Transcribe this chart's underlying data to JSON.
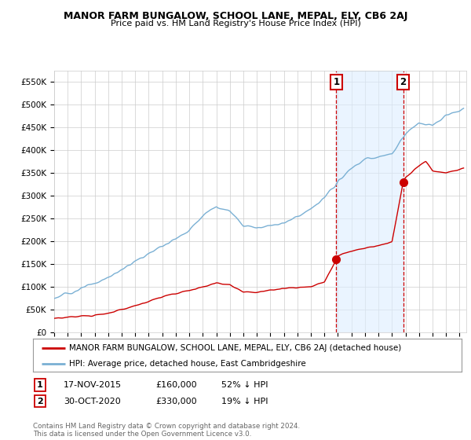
{
  "title": "MANOR FARM BUNGALOW, SCHOOL LANE, MEPAL, ELY, CB6 2AJ",
  "subtitle": "Price paid vs. HM Land Registry's House Price Index (HPI)",
  "ylabel_ticks": [
    "£0",
    "£50K",
    "£100K",
    "£150K",
    "£200K",
    "£250K",
    "£300K",
    "£350K",
    "£400K",
    "£450K",
    "£500K",
    "£550K"
  ],
  "ytick_vals": [
    0,
    50000,
    100000,
    150000,
    200000,
    250000,
    300000,
    350000,
    400000,
    450000,
    500000,
    550000
  ],
  "ylim": [
    0,
    575000
  ],
  "xlim_start": 1995.0,
  "xlim_end": 2025.5,
  "red_line_color": "#cc0000",
  "blue_line_color": "#7ab0d4",
  "point1_x": 2015.88,
  "point1_y": 160000,
  "point2_x": 2020.83,
  "point2_y": 330000,
  "vline1_x": 2015.88,
  "vline2_x": 2020.83,
  "shade_start": 2015.88,
  "shade_end": 2020.83,
  "legend_red": "MANOR FARM BUNGALOW, SCHOOL LANE, MEPAL, ELY, CB6 2AJ (detached house)",
  "legend_blue": "HPI: Average price, detached house, East Cambridgeshire",
  "table_row1": [
    "1",
    "17-NOV-2015",
    "£160,000",
    "52% ↓ HPI"
  ],
  "table_row2": [
    "2",
    "30-OCT-2020",
    "£330,000",
    "19% ↓ HPI"
  ],
  "footnote": "Contains HM Land Registry data © Crown copyright and database right 2024.\nThis data is licensed under the Open Government Licence v3.0.",
  "bg_color": "#ffffff",
  "grid_color": "#cccccc",
  "shade_color": "#ddeeff"
}
